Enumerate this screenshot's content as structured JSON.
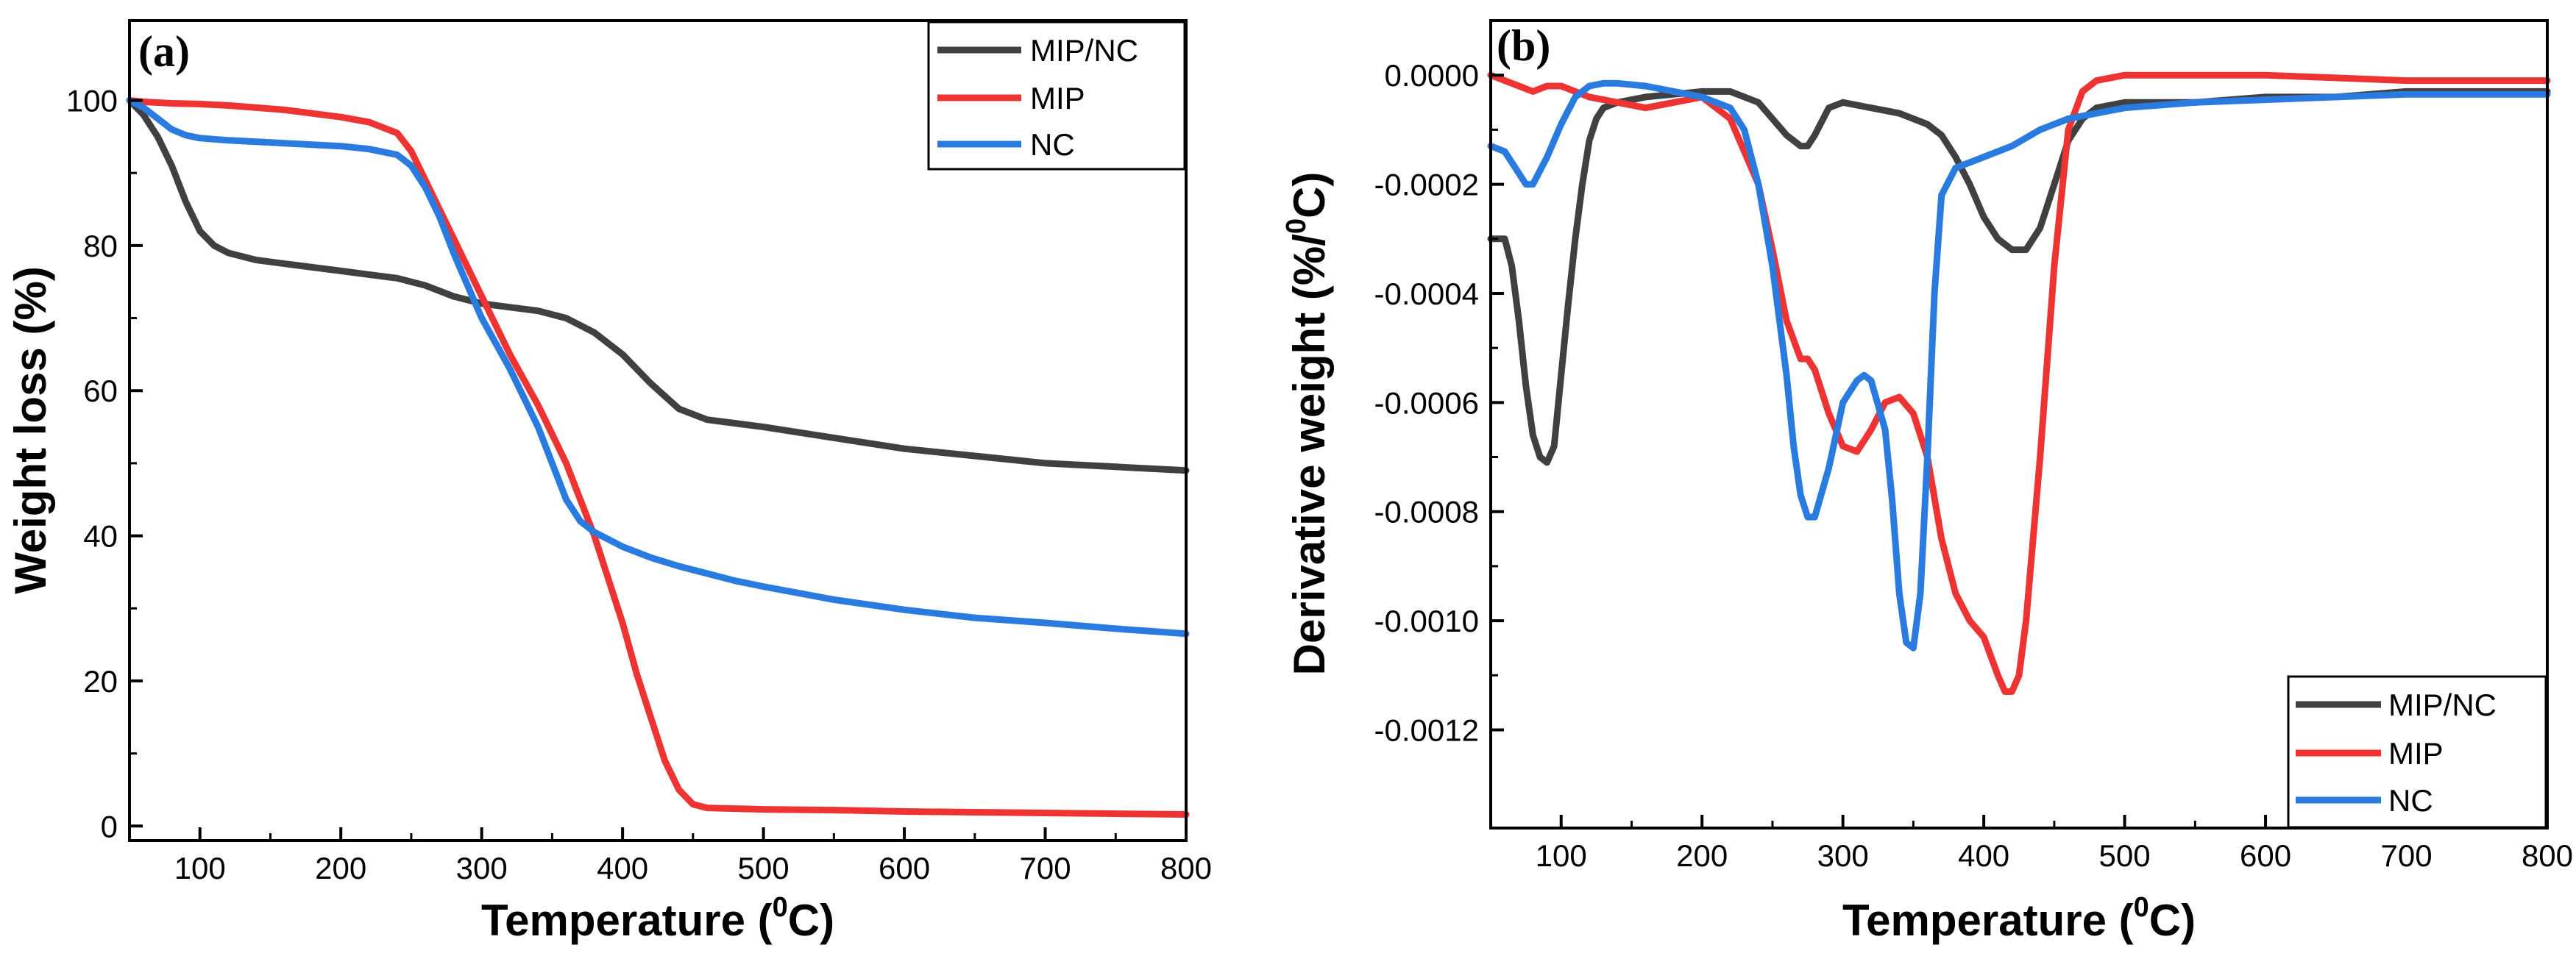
{
  "colors": {
    "MIP/NC": "#404040",
    "MIP": "#ee3333",
    "NC": "#2a7be0"
  },
  "chart_data": [
    {
      "type": "line",
      "panel_label": "(a)",
      "xlabel": {
        "main": "Temperature (",
        "sup": "0",
        "end": "C)"
      },
      "ylabel": "Weight loss (%)",
      "xlim": [
        50,
        800
      ],
      "ylim": [
        -2,
        111
      ],
      "xticks": [
        100,
        200,
        300,
        400,
        500,
        600,
        700,
        800
      ],
      "yticks": [
        0,
        20,
        40,
        60,
        80,
        100
      ],
      "ytick_labels": [
        "0",
        "20",
        "40",
        "60",
        "80",
        "100"
      ],
      "legend_position": "top-right",
      "series": [
        {
          "name": "MIP/NC",
          "x": [
            50,
            60,
            70,
            80,
            90,
            100,
            110,
            120,
            140,
            160,
            180,
            200,
            220,
            240,
            260,
            280,
            300,
            320,
            340,
            360,
            380,
            400,
            420,
            440,
            460,
            480,
            500,
            550,
            600,
            650,
            700,
            750,
            800
          ],
          "y": [
            100,
            98,
            95,
            91,
            86,
            82,
            80,
            79,
            78,
            77.5,
            77,
            76.5,
            76,
            75.5,
            74.5,
            73,
            72,
            71.5,
            71,
            70,
            68,
            65,
            61,
            57.5,
            56,
            55.5,
            55,
            53.5,
            52,
            51,
            50,
            49.5,
            49
          ]
        },
        {
          "name": "MIP",
          "x": [
            50,
            60,
            80,
            100,
            120,
            140,
            160,
            180,
            200,
            220,
            240,
            250,
            260,
            270,
            280,
            290,
            300,
            320,
            340,
            360,
            380,
            400,
            410,
            420,
            430,
            440,
            450,
            460,
            480,
            500,
            550,
            600,
            650,
            700,
            750,
            800
          ],
          "y": [
            100,
            99.8,
            99.6,
            99.5,
            99.3,
            99,
            98.7,
            98.2,
            97.7,
            97,
            95.5,
            93,
            89,
            85,
            81,
            77,
            73,
            65,
            58,
            50,
            40,
            28,
            21,
            15,
            9,
            5,
            3,
            2.5,
            2.4,
            2.3,
            2.2,
            2,
            1.9,
            1.8,
            1.7,
            1.6
          ]
        },
        {
          "name": "NC",
          "x": [
            50,
            60,
            70,
            80,
            90,
            100,
            120,
            150,
            200,
            220,
            240,
            250,
            260,
            270,
            280,
            290,
            300,
            320,
            340,
            360,
            370,
            380,
            400,
            420,
            440,
            460,
            480,
            500,
            550,
            600,
            650,
            700,
            750,
            800
          ],
          "y": [
            100,
            99,
            97.5,
            96,
            95.2,
            94.8,
            94.5,
            94.2,
            93.7,
            93.3,
            92.5,
            91,
            88,
            84,
            79,
            74.5,
            70,
            63,
            55,
            45,
            42,
            40.5,
            38.5,
            37,
            35.8,
            34.8,
            33.8,
            33,
            31.2,
            29.8,
            28.7,
            28,
            27.2,
            26.5
          ]
        }
      ]
    },
    {
      "type": "line",
      "panel_label": "(b)",
      "xlabel": {
        "main": "Temperature (",
        "sup": "0",
        "end": "C)"
      },
      "ylabel": {
        "main": "Derivative weight (%/",
        "sup": "0",
        "end": "C)"
      },
      "xlim": [
        50,
        800
      ],
      "ylim": [
        -0.00138,
        0.0001
      ],
      "xticks": [
        100,
        200,
        300,
        400,
        500,
        600,
        700,
        800
      ],
      "yticks": [
        0,
        -0.0002,
        -0.0004,
        -0.0006,
        -0.0008,
        -0.001,
        -0.0012
      ],
      "ytick_labels": [
        "0.0000",
        "-0.0002",
        "-0.0004",
        "-0.0006",
        "-0.0008",
        "-0.0010",
        "-0.0012"
      ],
      "legend_position": "bottom-right",
      "series": [
        {
          "name": "MIP/NC",
          "x": [
            50,
            60,
            65,
            70,
            75,
            80,
            85,
            90,
            95,
            100,
            105,
            110,
            115,
            120,
            125,
            130,
            140,
            160,
            180,
            200,
            220,
            240,
            250,
            260,
            270,
            275,
            280,
            290,
            300,
            320,
            340,
            360,
            370,
            380,
            390,
            400,
            410,
            420,
            430,
            440,
            450,
            460,
            470,
            480,
            500,
            550,
            600,
            650,
            700,
            750,
            800
          ],
          "y": [
            -0.0003,
            -0.0003,
            -0.00035,
            -0.00045,
            -0.00057,
            -0.00066,
            -0.0007,
            -0.00071,
            -0.00068,
            -0.00055,
            -0.00042,
            -0.0003,
            -0.0002,
            -0.00012,
            -8e-05,
            -6e-05,
            -5e-05,
            -4e-05,
            -3.5e-05,
            -3e-05,
            -3e-05,
            -5e-05,
            -8e-05,
            -0.00011,
            -0.00013,
            -0.00013,
            -0.00011,
            -6e-05,
            -5e-05,
            -6e-05,
            -7e-05,
            -9e-05,
            -0.00011,
            -0.00015,
            -0.0002,
            -0.00026,
            -0.0003,
            -0.00032,
            -0.00032,
            -0.00028,
            -0.0002,
            -0.00012,
            -8e-05,
            -6e-05,
            -5e-05,
            -5e-05,
            -4e-05,
            -4e-05,
            -3e-05,
            -3e-05,
            -3e-05
          ]
        },
        {
          "name": "MIP",
          "x": [
            50,
            60,
            70,
            80,
            90,
            100,
            110,
            120,
            140,
            160,
            180,
            200,
            220,
            240,
            250,
            260,
            270,
            275,
            280,
            290,
            300,
            310,
            320,
            330,
            340,
            350,
            360,
            370,
            380,
            390,
            400,
            410,
            415,
            420,
            425,
            430,
            440,
            450,
            460,
            470,
            480,
            500,
            550,
            600,
            650,
            700,
            750,
            800
          ],
          "y": [
            0,
            -1e-05,
            -2e-05,
            -3e-05,
            -2e-05,
            -2e-05,
            -3e-05,
            -4e-05,
            -5e-05,
            -6e-05,
            -5e-05,
            -4e-05,
            -8e-05,
            -0.0002,
            -0.00032,
            -0.00045,
            -0.00052,
            -0.00052,
            -0.00054,
            -0.00062,
            -0.00068,
            -0.00069,
            -0.00065,
            -0.0006,
            -0.00059,
            -0.00062,
            -0.0007,
            -0.00085,
            -0.00095,
            -0.001,
            -0.00103,
            -0.0011,
            -0.00113,
            -0.00113,
            -0.0011,
            -0.001,
            -0.0007,
            -0.00035,
            -0.0001,
            -3e-05,
            -1e-05,
            0,
            0,
            0,
            -5e-06,
            -1e-05,
            -1e-05,
            -1e-05
          ]
        },
        {
          "name": "NC",
          "x": [
            50,
            60,
            70,
            75,
            80,
            90,
            100,
            110,
            120,
            130,
            140,
            160,
            180,
            200,
            220,
            230,
            240,
            250,
            260,
            265,
            270,
            275,
            280,
            290,
            300,
            310,
            315,
            320,
            330,
            335,
            340,
            345,
            350,
            355,
            360,
            365,
            370,
            380,
            390,
            400,
            420,
            440,
            460,
            480,
            500,
            550,
            600,
            650,
            700,
            750,
            800
          ],
          "y": [
            -0.00013,
            -0.00014,
            -0.00018,
            -0.0002,
            -0.0002,
            -0.00015,
            -9e-05,
            -4e-05,
            -2e-05,
            -1.5e-05,
            -1.5e-05,
            -2e-05,
            -3e-05,
            -4e-05,
            -6e-05,
            -0.0001,
            -0.0002,
            -0.00035,
            -0.00055,
            -0.00068,
            -0.00077,
            -0.00081,
            -0.00081,
            -0.00072,
            -0.0006,
            -0.00056,
            -0.00055,
            -0.00056,
            -0.00065,
            -0.00078,
            -0.00095,
            -0.00104,
            -0.00105,
            -0.00095,
            -0.0007,
            -0.0004,
            -0.00022,
            -0.00017,
            -0.00016,
            -0.00015,
            -0.00013,
            -0.0001,
            -8e-05,
            -7e-05,
            -6e-05,
            -5e-05,
            -4.5e-05,
            -4e-05,
            -3.5e-05,
            -3.5e-05,
            -3.5e-05
          ]
        }
      ]
    }
  ]
}
